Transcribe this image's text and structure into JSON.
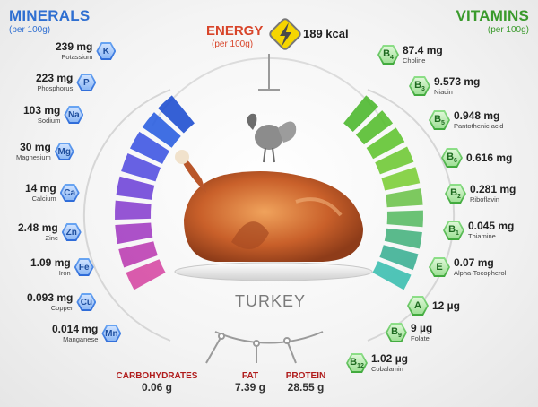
{
  "minerals": {
    "title": "MINERALS",
    "subtitle": "(per 100g)",
    "items": [
      {
        "value": "239 mg",
        "name": "Potassium",
        "symbol": "K"
      },
      {
        "value": "223 mg",
        "name": "Phosphorus",
        "symbol": "P"
      },
      {
        "value": "103 mg",
        "name": "Sodium",
        "symbol": "Na"
      },
      {
        "value": "30 mg",
        "name": "Magnesium",
        "symbol": "Mg"
      },
      {
        "value": "14 mg",
        "name": "Calcium",
        "symbol": "Ca"
      },
      {
        "value": "2.48 mg",
        "name": "Zinc",
        "symbol": "Zn"
      },
      {
        "value": "1.09 mg",
        "name": "Iron",
        "symbol": "Fe"
      },
      {
        "value": "0.093 mg",
        "name": "Copper",
        "symbol": "Cu"
      },
      {
        "value": "0.014 mg",
        "name": "Manganese",
        "symbol": "Mn"
      }
    ]
  },
  "vitamins": {
    "title": "VITAMINS",
    "subtitle": "(per 100g)",
    "items": [
      {
        "value": "87.4 mg",
        "name": "Choline",
        "symbol": "B",
        "sub": "4"
      },
      {
        "value": "9.573 mg",
        "name": "Niacin",
        "symbol": "B",
        "sub": "3"
      },
      {
        "value": "0.948 mg",
        "name": "Pantothenic acid",
        "symbol": "B",
        "sub": "5"
      },
      {
        "value": "0.616 mg",
        "name": "",
        "symbol": "B",
        "sub": "6"
      },
      {
        "value": "0.281 mg",
        "name": "Riboflavin",
        "symbol": "B",
        "sub": "2"
      },
      {
        "value": "0.045 mg",
        "name": "Thiamine",
        "symbol": "B",
        "sub": "1"
      },
      {
        "value": "0.07 mg",
        "name": "Alpha-Tocopherol",
        "symbol": "E",
        "sub": ""
      },
      {
        "value": "12 µg",
        "name": "",
        "symbol": "A",
        "sub": ""
      },
      {
        "value": "9 µg",
        "name": "Folate",
        "symbol": "B",
        "sub": "9"
      },
      {
        "value": "1.02 µg",
        "name": "Cobalamin",
        "symbol": "B",
        "sub": "12"
      }
    ]
  },
  "energy": {
    "label": "ENERGY",
    "subtitle": "(per 100g)",
    "value": "189 kcal"
  },
  "food": {
    "name": "TURKEY"
  },
  "nutrients": [
    {
      "label": "CARBOHYDRATES",
      "value": "0.06 g"
    },
    {
      "label": "FAT",
      "value": "7.39 g"
    },
    {
      "label": "PROTEIN",
      "value": "28.55 g"
    }
  ],
  "colors": {
    "mineral_accent": "#2f6fd1",
    "vitamin_accent": "#3a9a2c",
    "energy_accent": "#d8452a",
    "nutrient_accent": "#b01c1c"
  }
}
